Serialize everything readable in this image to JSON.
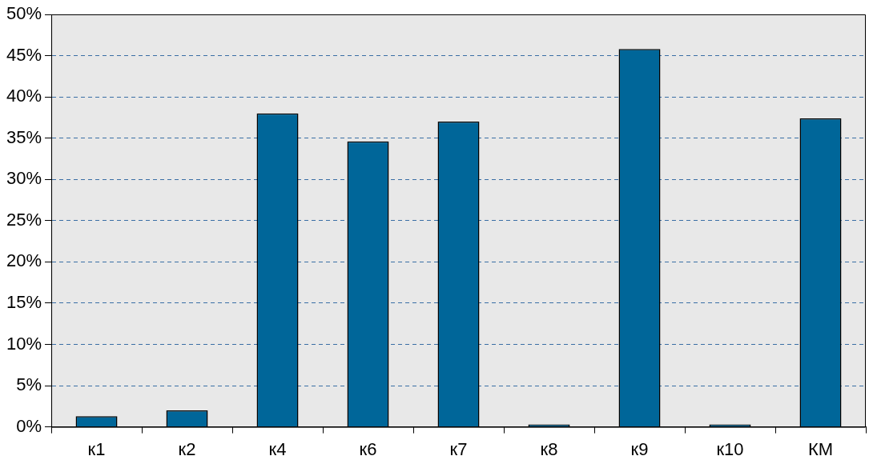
{
  "chart_data": {
    "type": "bar",
    "categories": [
      "к1",
      "к2",
      "к4",
      "к6",
      "к7",
      "к8",
      "к9",
      "к10",
      "КМ"
    ],
    "series": [
      {
        "color": "#006699",
        "values": [
          1.3,
          2.0,
          38.0,
          34.6,
          37.0,
          0.3,
          45.8,
          0.3,
          37.4
        ]
      }
    ],
    "ylim": [
      0,
      50
    ],
    "yticks": [
      {
        "value": 0,
        "label": "0%"
      },
      {
        "value": 5,
        "label": "5%"
      },
      {
        "value": 10,
        "label": "10%"
      },
      {
        "value": 15,
        "label": "15%"
      },
      {
        "value": 20,
        "label": "20%"
      },
      {
        "value": 25,
        "label": "25%"
      },
      {
        "value": 30,
        "label": "30%"
      },
      {
        "value": 35,
        "label": "35%"
      },
      {
        "value": 40,
        "label": "40%"
      },
      {
        "value": 45,
        "label": "45%"
      },
      {
        "value": 50,
        "label": "50%"
      }
    ],
    "grid": "y",
    "legend": false
  }
}
